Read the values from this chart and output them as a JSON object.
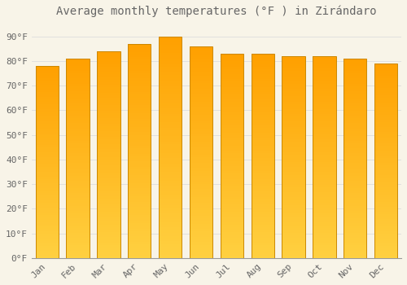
{
  "title": "Average monthly temperatures (°F ) in Zirándaro",
  "months": [
    "Jan",
    "Feb",
    "Mar",
    "Apr",
    "May",
    "Jun",
    "Jul",
    "Aug",
    "Sep",
    "Oct",
    "Nov",
    "Dec"
  ],
  "values": [
    78,
    81,
    84,
    87,
    90,
    86,
    83,
    83,
    82,
    82,
    81,
    79
  ],
  "bar_color_bottom": "#FFD040",
  "bar_color_top": "#FFA000",
  "bar_edge_color": "#CC8800",
  "background_color": "#F8F4E8",
  "grid_color": "#DDDDDD",
  "text_color": "#666666",
  "ylim": [
    0,
    95
  ],
  "yticks": [
    0,
    10,
    20,
    30,
    40,
    50,
    60,
    70,
    80,
    90
  ],
  "title_fontsize": 10,
  "tick_fontsize": 8,
  "bar_width": 0.75
}
